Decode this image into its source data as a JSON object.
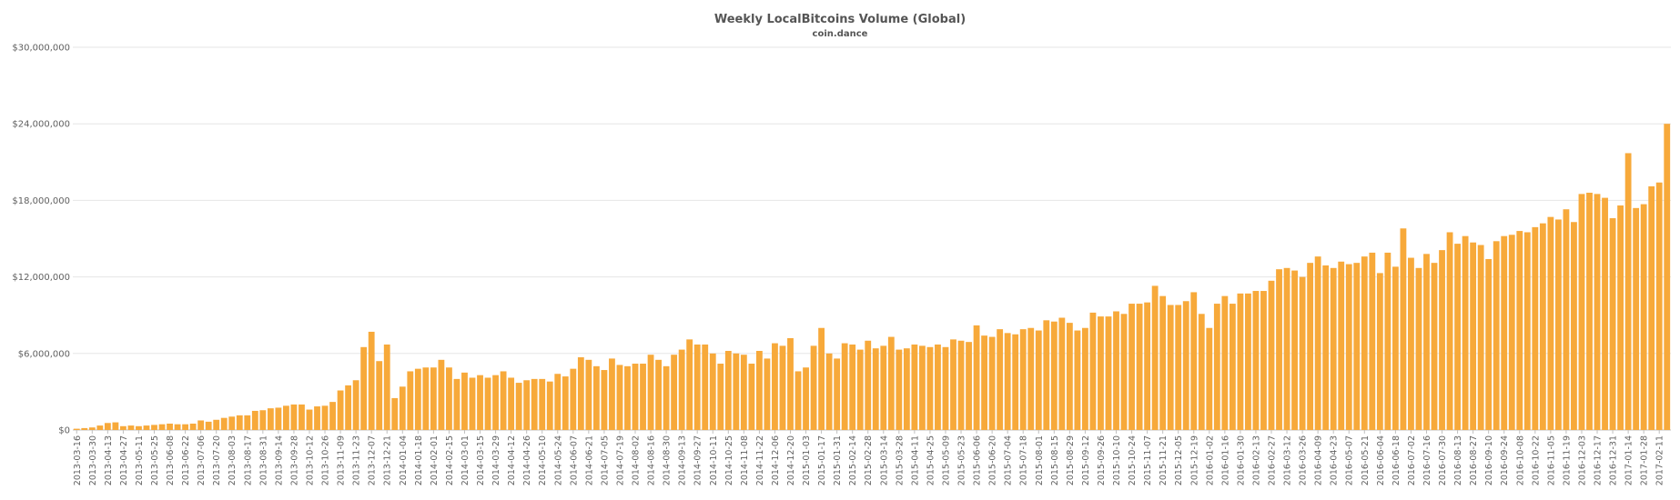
{
  "chart_data": {
    "type": "bar",
    "title": "Weekly LocalBitcoins Volume (Global)",
    "subtitle": "coin.dance",
    "xlabel": "",
    "ylabel": "",
    "ylim": [
      0,
      30000000
    ],
    "y_ticks": [
      0,
      6000000,
      12000000,
      18000000,
      24000000,
      30000000
    ],
    "y_tick_labels": [
      "$0",
      "$6,000,000",
      "$12,000,000",
      "$18,000,000",
      "$24,000,000",
      "$30,000,000"
    ],
    "x_tick_labels": [
      "2013-03-16",
      "2013-03-30",
      "2013-04-13",
      "2013-04-27",
      "2013-05-11",
      "2013-05-25",
      "2013-06-08",
      "2013-06-22",
      "2013-07-06",
      "2013-07-20",
      "2013-08-03",
      "2013-08-17",
      "2013-08-31",
      "2013-09-14",
      "2013-09-28",
      "2013-10-12",
      "2013-10-26",
      "2013-11-09",
      "2013-11-23",
      "2013-12-07",
      "2013-12-21",
      "2014-01-04",
      "2014-01-18",
      "2014-02-01",
      "2014-02-15",
      "2014-03-01",
      "2014-03-15",
      "2014-03-29",
      "2014-04-12",
      "2014-04-26",
      "2014-05-10",
      "2014-05-24",
      "2014-06-07",
      "2014-06-21",
      "2014-07-05",
      "2014-07-19",
      "2014-08-02",
      "2014-08-16",
      "2014-08-30",
      "2014-09-13",
      "2014-09-27",
      "2014-10-11",
      "2014-10-25",
      "2014-11-08",
      "2014-11-22",
      "2014-12-06",
      "2014-12-20",
      "2015-01-03",
      "2015-01-17",
      "2015-01-31",
      "2015-02-14",
      "2015-02-28",
      "2015-03-14",
      "2015-03-28",
      "2015-04-11",
      "2015-04-25",
      "2015-05-09",
      "2015-05-23",
      "2015-06-06",
      "2015-06-20",
      "2015-07-04",
      "2015-07-18",
      "2015-08-01",
      "2015-08-15",
      "2015-08-29",
      "2015-09-12",
      "2015-09-26",
      "2015-10-10",
      "2015-10-24",
      "2015-11-07",
      "2015-11-21",
      "2015-12-05",
      "2015-12-19",
      "2016-01-02",
      "2016-01-16",
      "2016-01-30",
      "2016-02-13",
      "2016-02-27",
      "2016-03-12",
      "2016-03-26",
      "2016-04-09",
      "2016-04-23",
      "2016-05-07",
      "2016-05-21",
      "2016-06-04",
      "2016-06-18",
      "2016-07-02",
      "2016-07-16",
      "2016-07-30",
      "2016-08-13",
      "2016-08-27",
      "2016-09-10",
      "2016-09-24",
      "2016-10-08",
      "2016-10-22",
      "2016-11-05",
      "2016-11-19",
      "2016-12-03",
      "2016-12-17",
      "2016-12-31",
      "2017-01-14",
      "2017-01-28",
      "2017-02-11"
    ],
    "series": [
      {
        "color": "#f7a93a",
        "values": [
          100000,
          150000,
          200000,
          350000,
          550000,
          600000,
          300000,
          350000,
          300000,
          350000,
          400000,
          450000,
          500000,
          450000,
          450000,
          500000,
          750000,
          650000,
          800000,
          950000,
          1050000,
          1150000,
          1150000,
          1500000,
          1550000,
          1700000,
          1750000,
          1900000,
          2000000,
          2000000,
          1600000,
          1850000,
          1900000,
          2200000,
          3100000,
          3500000,
          3900000,
          6500000,
          7700000,
          5400000,
          6700000,
          2500000,
          3400000,
          4600000,
          4800000,
          4900000,
          4900000,
          5500000,
          4900000,
          4000000,
          4500000,
          4100000,
          4300000,
          4100000,
          4300000,
          4600000,
          4100000,
          3700000,
          3900000,
          4000000,
          4000000,
          3800000,
          4400000,
          4200000,
          4800000,
          5700000,
          5500000,
          5000000,
          4700000,
          5600000,
          5100000,
          5000000,
          5200000,
          5200000,
          5900000,
          5500000,
          5000000,
          5900000,
          6300000,
          7100000,
          6700000,
          6700000,
          6000000,
          5200000,
          6200000,
          6000000,
          5900000,
          5200000,
          6200000,
          5600000,
          6800000,
          6600000,
          7200000,
          4600000,
          4900000,
          6600000,
          8000000,
          6000000,
          5600000,
          6800000,
          6700000,
          6300000,
          7000000,
          6400000,
          6600000,
          7300000,
          6300000,
          6400000,
          6700000,
          6600000,
          6500000,
          6700000,
          6500000,
          7100000,
          7000000,
          6900000,
          8200000,
          7400000,
          7300000,
          7900000,
          7600000,
          7500000,
          7900000,
          8000000,
          7800000,
          8600000,
          8500000,
          8800000,
          8400000,
          7800000,
          8000000,
          9200000,
          8900000,
          8900000,
          9300000,
          9100000,
          9900000,
          9900000,
          10000000,
          11300000,
          10500000,
          9800000,
          9800000,
          10100000,
          10800000,
          9100000,
          8000000,
          9900000,
          10500000,
          9900000,
          10700000,
          10700000,
          10900000,
          10900000,
          11700000,
          12600000,
          12700000,
          12500000,
          12000000,
          13100000,
          13600000,
          12900000,
          12700000,
          13200000,
          13000000,
          13100000,
          13600000,
          13900000,
          12300000,
          13900000,
          12800000,
          15800000,
          13500000,
          12700000,
          13800000,
          13100000,
          14100000,
          15500000,
          14600000,
          15200000,
          14700000,
          14500000,
          13400000,
          14800000,
          15200000,
          15300000,
          15600000,
          15500000,
          15900000,
          16200000,
          16700000,
          16500000,
          17300000,
          16300000,
          18500000,
          18600000,
          18500000,
          18200000,
          16600000,
          17600000,
          21700000,
          17400000,
          17700000,
          19100000,
          19400000,
          24000000
        ]
      }
    ],
    "grid": true,
    "legend": "none"
  }
}
